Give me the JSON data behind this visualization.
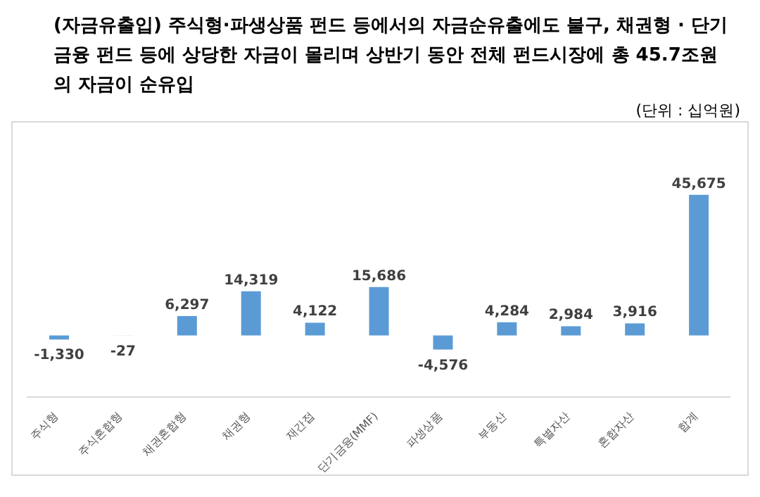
{
  "chart_data": {
    "type": "bar",
    "title": "(자금유출입) 주식형·파생상품 펀드 등에서의 자금순유출에도 불구, 채권형 · 단기금융 펀드 등에 상당한 자금이 몰리며 상반기 동안 전체 펀드시장에 총 45.7조원의 자금이 순유입",
    "subtitle": "(단위 : 십억원)",
    "categories": [
      "주식형",
      "주식혼합형",
      "채권혼합형",
      "채권형",
      "재간접",
      "단기금융(MMF)",
      "파생상품",
      "부동산",
      "특별자산",
      "혼합자산",
      "합계"
    ],
    "values": [
      -1330,
      -27,
      6297,
      14319,
      4122,
      15686,
      -4576,
      4284,
      2984,
      3916,
      45675
    ],
    "value_labels": [
      "-1,330",
      "-27",
      "6,297",
      "14,319",
      "4,122",
      "15,686",
      "-4,576",
      "4,284",
      "2,984",
      "3,916",
      "45,675"
    ],
    "color": "#5b9bd5"
  }
}
